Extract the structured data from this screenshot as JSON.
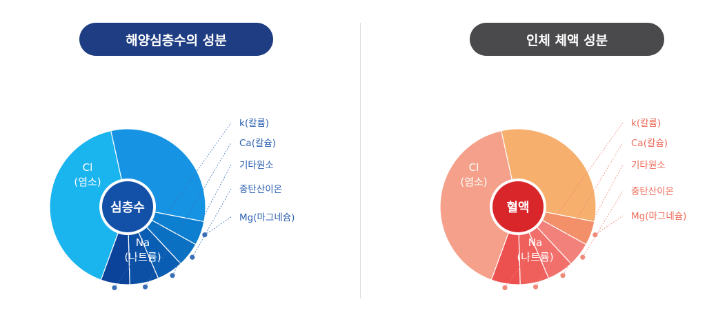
{
  "chart_data": [
    {
      "type": "pie",
      "title": "해양심층수의 성분",
      "center_label": "심층수",
      "slices": [
        {
          "label": "Cl",
          "sublabel": "(염소)",
          "value": 41
        },
        {
          "label": "Na",
          "sublabel": "(나트륨)",
          "value": 31.5
        },
        {
          "label": "Mg(마그네슘)",
          "value": 5
        },
        {
          "label": "중탄산이온",
          "value": 5
        },
        {
          "label": "기타원소",
          "value": 5.5
        },
        {
          "label": "Ca(칼슘)",
          "value": 6
        },
        {
          "label": "k(칼륨)",
          "value": 6
        }
      ],
      "colors": {
        "slices": [
          "#1ab4ee",
          "#1694e3",
          "#0d7fd1",
          "#0a70c2",
          "#095eb3",
          "#0b50a5",
          "#0b439a"
        ],
        "center": "#1350a8",
        "center_ring": "#ffffff",
        "label_text": "#2a5fb0",
        "inner_label_text": "#ffffff",
        "leader": "#3a6fb8"
      }
    },
    {
      "type": "pie",
      "title": "인체 체액 성분",
      "center_label": "혈액",
      "slices": [
        {
          "label": "Cl",
          "sublabel": "(염소)",
          "value": 41
        },
        {
          "label": "Na",
          "sublabel": "(나트륨)",
          "value": 31.5
        },
        {
          "label": "Mg(마그네슘)",
          "value": 5
        },
        {
          "label": "중탄산이온",
          "value": 5
        },
        {
          "label": "기타원소",
          "value": 5.5
        },
        {
          "label": "Ca(칼슘)",
          "value": 6
        },
        {
          "label": "k(칼륨)",
          "value": 6
        }
      ],
      "colors": {
        "slices": [
          "#f4a08a",
          "#f6af6c",
          "#f3906a",
          "#f3817b",
          "#f2706c",
          "#ef605d",
          "#ec5150"
        ],
        "center": "#d9262b",
        "center_ring": "#ffffff",
        "label_text": "#ee6b5a",
        "inner_label_text": "#ffffff",
        "leader": "#f08a7a"
      }
    }
  ],
  "header": {
    "left_title": "해양심층수의 성분",
    "right_title": "인체 체액 성분",
    "left_color": "#1f3d82",
    "right_color": "#4a4a4c"
  }
}
